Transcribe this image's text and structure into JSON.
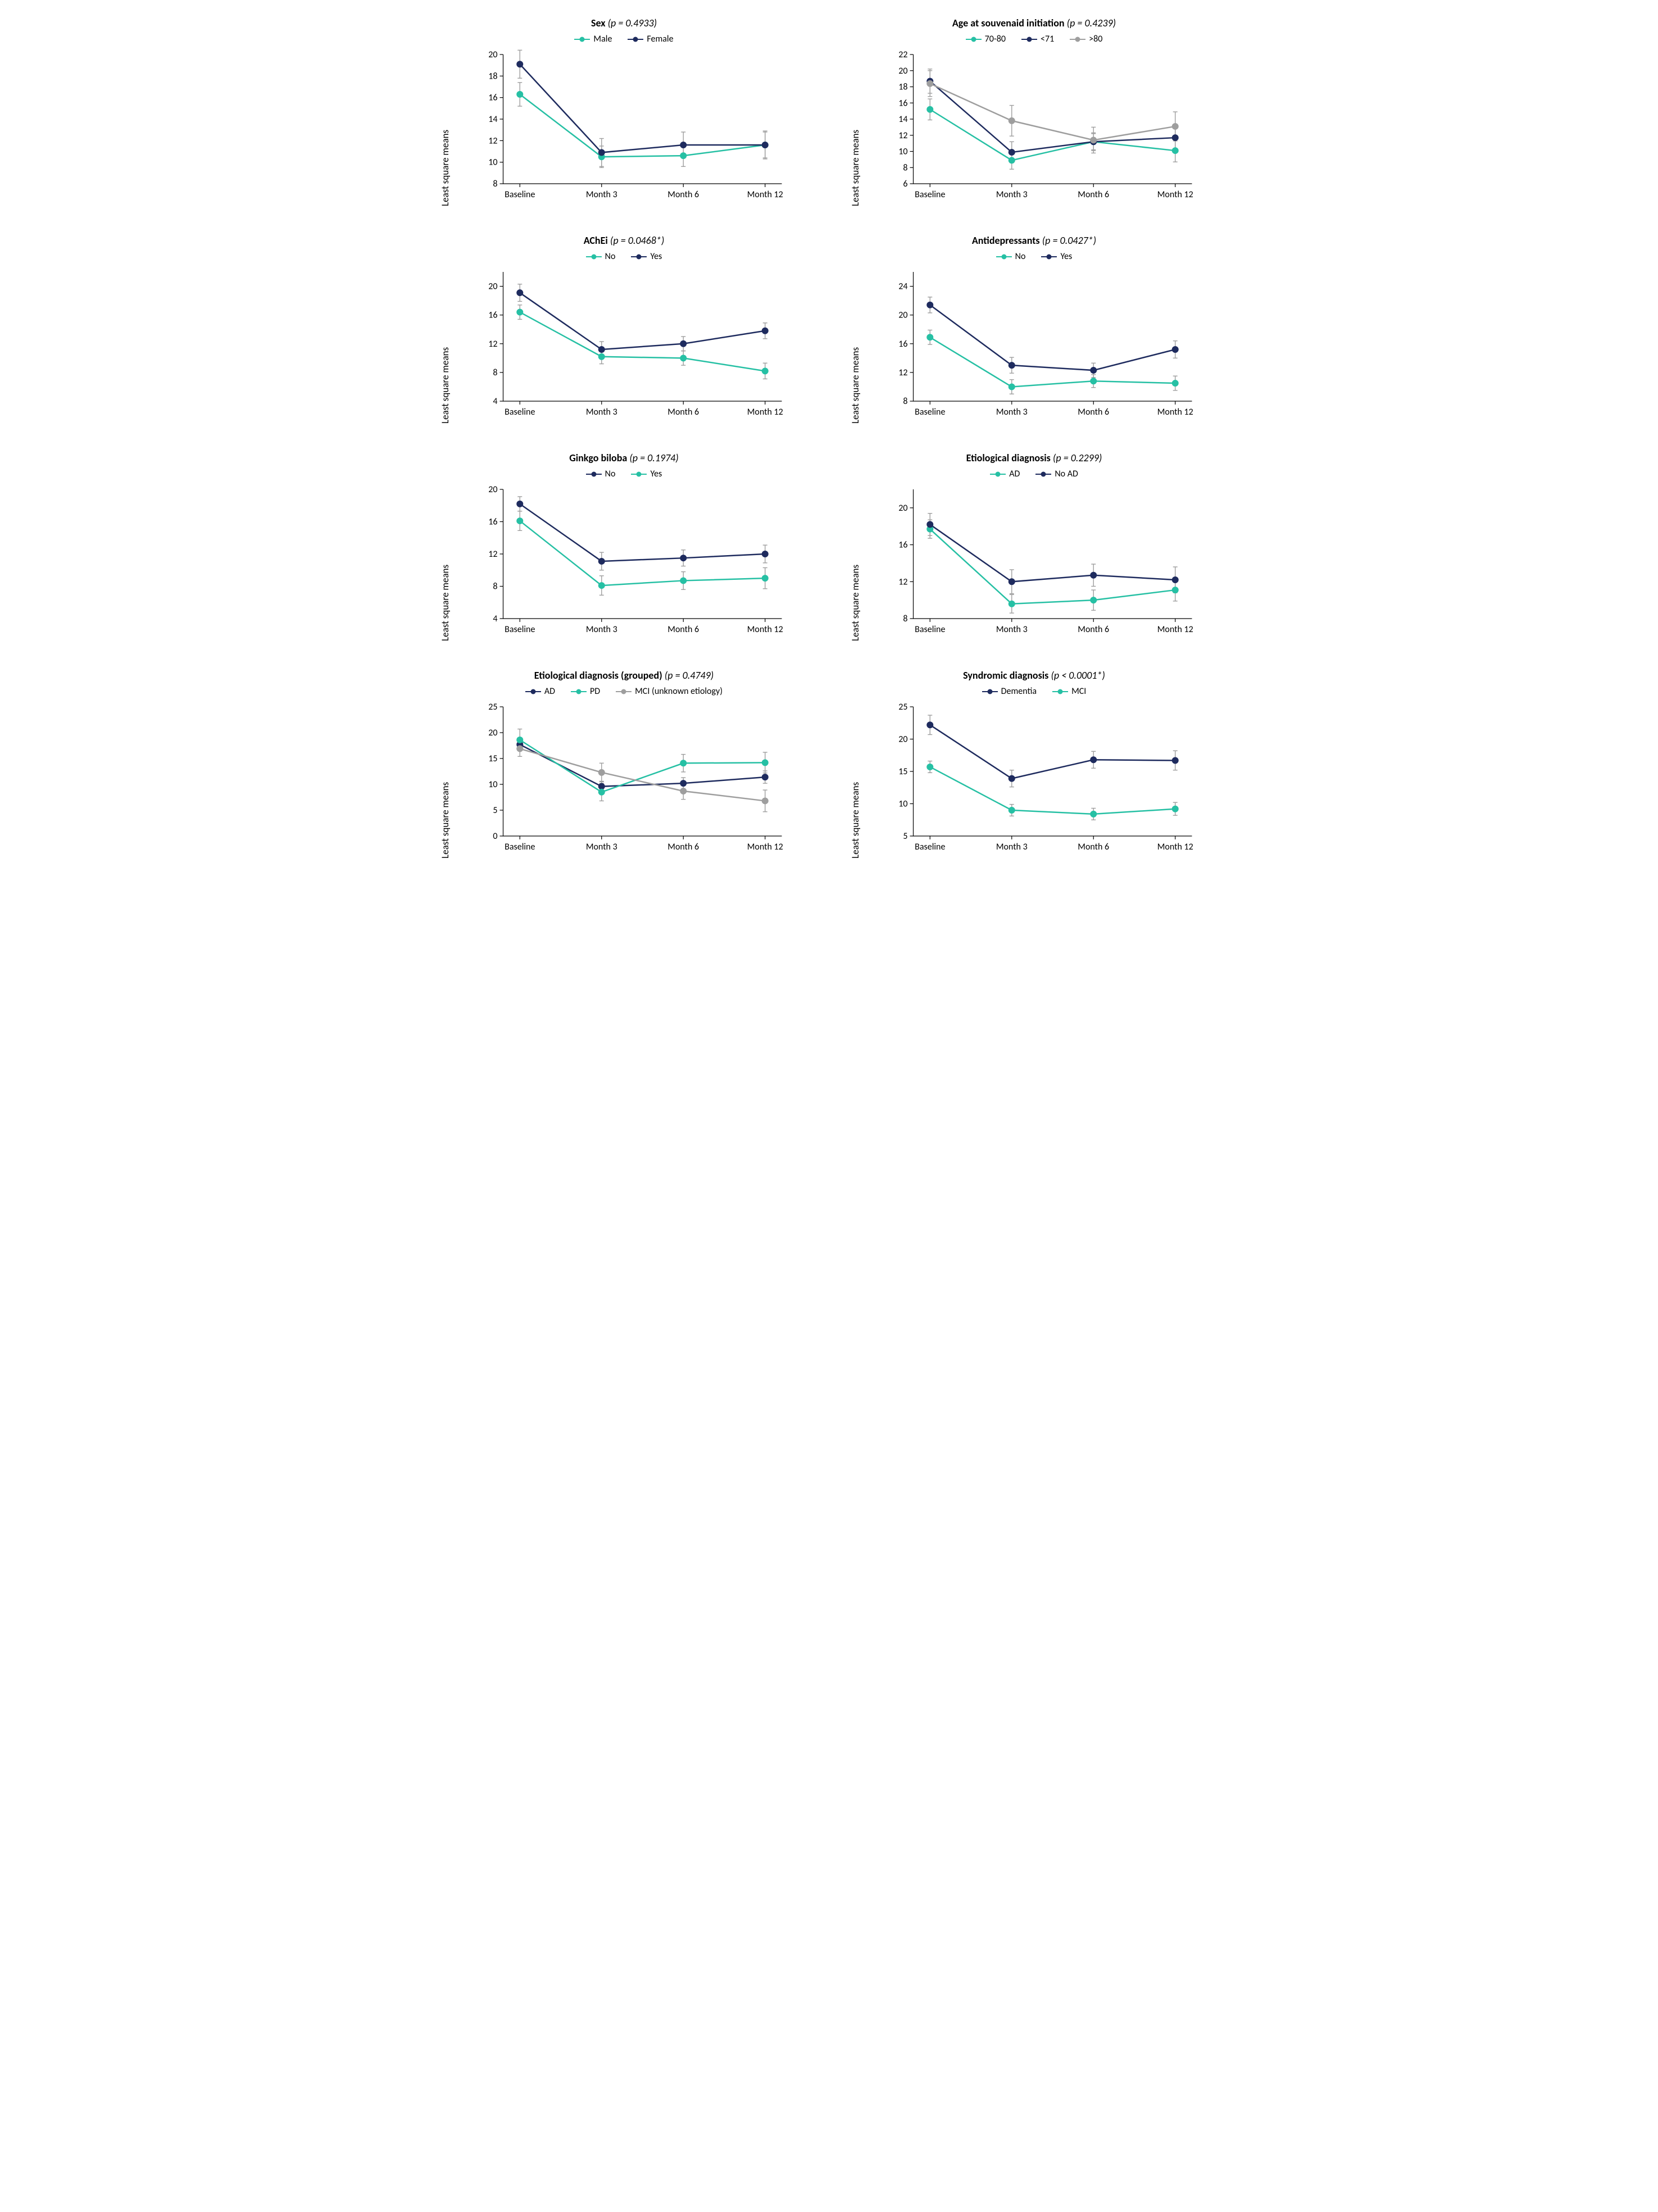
{
  "categories": [
    "Baseline",
    "Month 3",
    "Month 6",
    "Month 12"
  ],
  "ylabel": "Least square means",
  "colors": {
    "teal": "#26c0a4",
    "navy": "#1e2b5e",
    "grey": "#9e9e9e",
    "error_bar": "#9e9e9e",
    "axis": "#000000",
    "bg": "#ffffff"
  },
  "marker_radius": 5.5,
  "error_cap": 8,
  "line_width": 2.5,
  "axis_fontsize": 16,
  "title_fontsize": 18,
  "panels": [
    {
      "id": "sex",
      "title_bold": "Sex",
      "pval_text": "(p = 0.4933)",
      "ylim": [
        8,
        20
      ],
      "ytick_step": 2,
      "series": [
        {
          "label": "Male",
          "color": "teal",
          "values": [
            16.3,
            10.5,
            10.6,
            11.6
          ],
          "err": [
            1.1,
            1.0,
            1.0,
            1.2
          ]
        },
        {
          "label": "Female",
          "color": "navy",
          "values": [
            19.1,
            10.9,
            11.6,
            11.6
          ],
          "err": [
            1.3,
            1.3,
            1.2,
            1.3
          ]
        }
      ]
    },
    {
      "id": "age",
      "title_bold": "Age at souvenaid initiation",
      "pval_text": "(p = 0.4239)",
      "ylim": [
        6,
        22
      ],
      "ytick_step": 2,
      "series": [
        {
          "label": "70-80",
          "color": "teal",
          "values": [
            15.2,
            8.9,
            11.2,
            10.1
          ],
          "err": [
            1.3,
            1.1,
            1.0,
            1.4
          ]
        },
        {
          "label": "<71",
          "color": "navy",
          "values": [
            18.7,
            9.9,
            11.2,
            11.7
          ],
          "err": [
            1.5,
            1.3,
            1.1,
            1.4
          ]
        },
        {
          "label": ">80",
          "color": "grey",
          "values": [
            18.4,
            13.8,
            11.4,
            13.1
          ],
          "err": [
            1.6,
            1.9,
            1.6,
            1.8
          ]
        }
      ]
    },
    {
      "id": "achei",
      "title_bold": "AChEi",
      "pval_text": "(p = 0.0468*)",
      "ylim": [
        4,
        22
      ],
      "ytick_step": 4,
      "series": [
        {
          "label": "No",
          "color": "teal",
          "values": [
            16.4,
            10.2,
            10.0,
            8.2
          ],
          "err": [
            1.0,
            1.0,
            1.0,
            1.1
          ]
        },
        {
          "label": "Yes",
          "color": "navy",
          "values": [
            19.1,
            11.2,
            12.0,
            13.8
          ],
          "err": [
            1.2,
            1.1,
            1.0,
            1.1
          ]
        }
      ]
    },
    {
      "id": "antidep",
      "title_bold": "Antidepressants",
      "pval_text": "(p = 0.0427*)",
      "ylim": [
        8,
        26
      ],
      "ytick_step": 4,
      "series": [
        {
          "label": "No",
          "color": "teal",
          "values": [
            16.9,
            10.0,
            10.8,
            10.5
          ],
          "err": [
            1.0,
            1.0,
            0.9,
            1.0
          ]
        },
        {
          "label": "Yes",
          "color": "navy",
          "values": [
            21.4,
            13.0,
            12.3,
            15.2
          ],
          "err": [
            1.1,
            1.1,
            1.0,
            1.2
          ]
        }
      ]
    },
    {
      "id": "ginkgo",
      "title_bold": "Ginkgo biloba",
      "pval_text": "(p = 0.1974)",
      "ylim": [
        4,
        20
      ],
      "ytick_step": 4,
      "series": [
        {
          "label": "No",
          "color": "navy",
          "values": [
            18.2,
            11.1,
            11.5,
            12.0
          ],
          "err": [
            0.9,
            1.1,
            1.0,
            1.1
          ]
        },
        {
          "label": "Yes",
          "color": "teal",
          "values": [
            16.1,
            8.1,
            8.7,
            9.0
          ],
          "err": [
            1.2,
            1.2,
            1.1,
            1.3
          ]
        }
      ]
    },
    {
      "id": "etiodx",
      "title_bold": "Etiological diagnosis",
      "pval_text": "(p = 0.2299)",
      "ylim": [
        8,
        22
      ],
      "ytick_step": 4,
      "series": [
        {
          "label": "AD",
          "color": "teal",
          "values": [
            17.7,
            9.6,
            10.0,
            11.1
          ],
          "err": [
            1.0,
            1.0,
            1.1,
            1.2
          ]
        },
        {
          "label": "No AD",
          "color": "navy",
          "values": [
            18.2,
            12.0,
            12.7,
            12.2
          ],
          "err": [
            1.2,
            1.3,
            1.2,
            1.4
          ]
        }
      ]
    },
    {
      "id": "etiodxg",
      "title_bold": "Etiological diagnosis (grouped)",
      "pval_text": "(p = 0.4749)",
      "ylim": [
        0,
        25
      ],
      "ytick_step": 5,
      "series": [
        {
          "label": "AD",
          "color": "navy",
          "values": [
            17.7,
            9.6,
            10.2,
            11.4
          ],
          "err": [
            1.0,
            1.0,
            1.1,
            1.2
          ]
        },
        {
          "label": "PD",
          "color": "teal",
          "values": [
            18.6,
            8.5,
            14.1,
            14.2
          ],
          "err": [
            2.1,
            1.7,
            1.7,
            2.0
          ]
        },
        {
          "label": "MCI (unknown etiology)",
          "color": "grey",
          "values": [
            16.9,
            12.3,
            8.7,
            6.8
          ],
          "err": [
            1.5,
            1.8,
            1.6,
            2.1
          ]
        }
      ]
    },
    {
      "id": "syndx",
      "title_bold": "Syndromic diagnosis",
      "pval_text": "(p < 0.0001*)",
      "ylim": [
        5,
        25
      ],
      "ytick_step": 5,
      "series": [
        {
          "label": "Dementia",
          "color": "navy",
          "values": [
            22.2,
            13.9,
            16.8,
            16.7
          ],
          "err": [
            1.5,
            1.3,
            1.3,
            1.5
          ]
        },
        {
          "label": "MCI",
          "color": "teal",
          "values": [
            15.7,
            9.0,
            8.4,
            9.2
          ],
          "err": [
            0.9,
            0.9,
            0.9,
            1.0
          ]
        }
      ]
    }
  ]
}
